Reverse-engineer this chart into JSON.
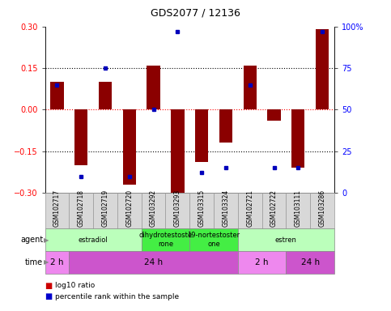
{
  "title": "GDS2077 / 12136",
  "samples": [
    "GSM102717",
    "GSM102718",
    "GSM102719",
    "GSM102720",
    "GSM103292",
    "GSM103293",
    "GSM103315",
    "GSM103324",
    "GSM102721",
    "GSM102722",
    "GSM103111",
    "GSM103286"
  ],
  "log10_ratio": [
    0.1,
    -0.2,
    0.1,
    -0.27,
    0.16,
    -0.31,
    -0.19,
    -0.12,
    0.16,
    -0.04,
    -0.21,
    0.29
  ],
  "percentile": [
    65,
    10,
    75,
    10,
    50,
    97,
    12,
    15,
    65,
    15,
    15,
    97
  ],
  "ylim": [
    -0.3,
    0.3
  ],
  "yticks_left": [
    -0.3,
    -0.15,
    0,
    0.15,
    0.3
  ],
  "yticks_right": [
    0,
    25,
    50,
    75,
    100
  ],
  "hlines_black": [
    -0.15,
    0.15
  ],
  "hline_red": 0,
  "bar_color": "#8B0000",
  "dot_color": "#0000BB",
  "agent_groups": [
    {
      "label": "estradiol",
      "start": 0,
      "end": 4,
      "color": "#BBFFBB"
    },
    {
      "label": "dihydrotestoste\nrone",
      "start": 4,
      "end": 6,
      "color": "#44EE44"
    },
    {
      "label": "19-nortestoster\none",
      "start": 6,
      "end": 8,
      "color": "#44EE44"
    },
    {
      "label": "estren",
      "start": 8,
      "end": 12,
      "color": "#BBFFBB"
    }
  ],
  "time_groups": [
    {
      "label": "2 h",
      "start": 0,
      "end": 1,
      "color": "#EE88EE"
    },
    {
      "label": "24 h",
      "start": 1,
      "end": 8,
      "color": "#CC55CC"
    },
    {
      "label": "2 h",
      "start": 8,
      "end": 10,
      "color": "#EE88EE"
    },
    {
      "label": "24 h",
      "start": 10,
      "end": 12,
      "color": "#CC55CC"
    }
  ],
  "legend_items": [
    {
      "label": "log10 ratio",
      "color": "#CC0000"
    },
    {
      "label": "percentile rank within the sample",
      "color": "#0000CC"
    }
  ],
  "bg_color": "#FFFFFF",
  "label_agent": "agent",
  "label_time": "time"
}
